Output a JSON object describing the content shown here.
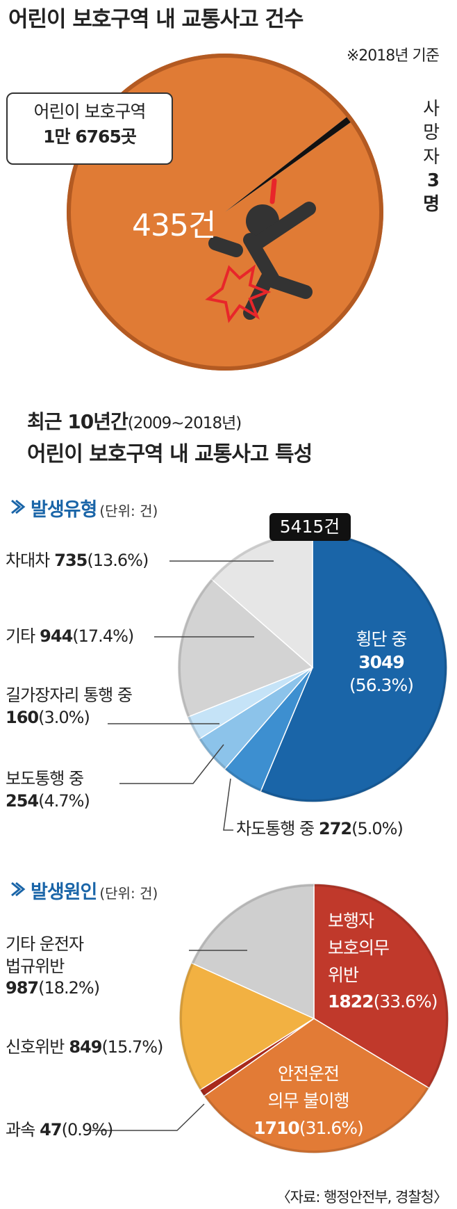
{
  "headline": {
    "period_title": "최근 10년간",
    "period": "(2009~2018년)",
    "subtitle": "어린이 보호구역 내 교통사고 특성"
  },
  "source": "〈자료: 행정안전부, 경찰청〉",
  "chart_data": [
    {
      "type": "pie",
      "title": "어린이 보호구역 내 교통사고 건수",
      "note": "※2018년 기준",
      "annotations": [
        "어린이 보호구역",
        "1만 6765곳"
      ],
      "categories": [
        null,
        "사망자"
      ],
      "values": [
        435,
        3
      ],
      "value_labels": [
        "435건",
        "3명"
      ],
      "colors": [
        "#e07b35",
        "#111111"
      ]
    },
    {
      "type": "pie",
      "title": "발생유형",
      "unit": "(단위: 건)",
      "total": 5415,
      "total_label": "5415건",
      "categories": [
        "횡단 중",
        "차도통행 중",
        "보도통행 중",
        "길가장자리 통행 중",
        "기타",
        "차대차"
      ],
      "values": [
        3049,
        272,
        254,
        160,
        944,
        735
      ],
      "share_labels": [
        "(56.3%)",
        "(5.0%)",
        "(4.7%)",
        "(3.0%)",
        "(17.4%)",
        "(13.6%)"
      ],
      "colors": [
        "#1a65a8",
        "#3d8fd0",
        "#8cc3ea",
        "#c5e3f7",
        "#d3d3d3",
        "#e6e6e6"
      ]
    },
    {
      "type": "pie",
      "title": "발생원인",
      "unit": "(단위: 건)",
      "categories": [
        "보행자\n보호의무\n위반",
        "안전운전\n의무 불이행",
        "과속",
        "신호위반",
        "기타 운전자\n법규위반"
      ],
      "values": [
        1822,
        1710,
        47,
        849,
        987
      ],
      "share_labels": [
        "(33.6%)",
        "(31.6%)",
        "(0.9%)",
        "(15.7%)",
        "(18.2%)"
      ],
      "colors": [
        "#c0392b",
        "#e27b36",
        "#a82a1c",
        "#f2b142",
        "#cfcfcf"
      ]
    }
  ]
}
